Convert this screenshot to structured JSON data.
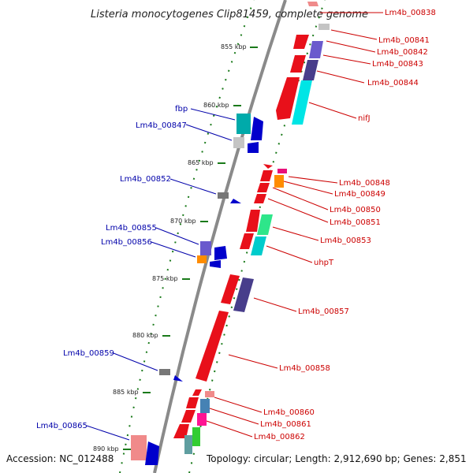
{
  "title": "Listeria monocytogenes Clip81459, complete genome",
  "footer": {
    "accession": "Accession: NC_012488",
    "summary": "Topology: circular; Length: 2,912,690 bp; Genes: 2,851"
  },
  "ticks": [
    "855 kbp",
    "860 kbp",
    "865 kbp",
    "870 kbp",
    "875 kbp",
    "880 kbp",
    "885 kbp",
    "890 kbp"
  ],
  "colors": {
    "backbone": "#8a8a8a",
    "forward_label": "#cc0000",
    "reverse_label": "#0000aa",
    "tick_mark": "#1a7a1a"
  },
  "forward_labels": [
    "Lm4b_00838",
    "Lm4b_00841",
    "Lm4b_00842",
    "Lm4b_00843",
    "Lm4b_00844",
    "nifJ",
    "Lm4b_00848",
    "Lm4b_00849",
    "Lm4b_00850",
    "Lm4b_00851",
    "Lm4b_00853",
    "uhpT",
    "Lm4b_00857",
    "Lm4b_00858",
    "Lm4b_00860",
    "Lm4b_00861",
    "Lm4b_00862"
  ],
  "reverse_labels": [
    "fbp",
    "Lm4b_00847",
    "Lm4b_00852",
    "Lm4b_00855",
    "Lm4b_00856",
    "Lm4b_00859",
    "Lm4b_00865"
  ]
}
